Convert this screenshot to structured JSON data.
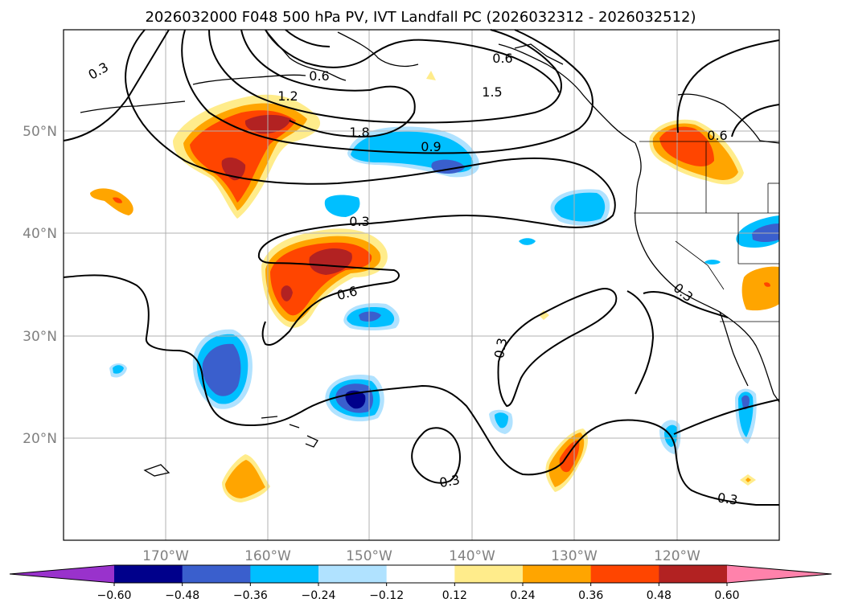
{
  "title": "2026032000 F048 500 hPa PV, IVT Landfall PC (2026032312 - 2026032512)",
  "map": {
    "lon_labels": [
      "170°W",
      "160°W",
      "150°W",
      "140°W",
      "130°W",
      "120°W"
    ],
    "lat_labels": [
      "50°N",
      "40°N",
      "30°N",
      "20°N"
    ],
    "contour_labels": [
      "0.3",
      "0.6",
      "1.2",
      "0.6",
      "1.5",
      "1.8",
      "0.9",
      "0.3",
      "0.6",
      "0.3",
      "0.3",
      "0.3",
      "0.6",
      "0.3"
    ]
  },
  "colorbar": {
    "ticks": [
      "−0.60",
      "−0.48",
      "−0.36",
      "−0.24",
      "−0.12",
      "0.12",
      "0.24",
      "0.36",
      "0.48",
      "0.60"
    ],
    "colors": [
      "#9932cc",
      "#00008b",
      "#3a5fcd",
      "#00bfff",
      "#b0e2ff",
      "#ffffff",
      "#ffec8b",
      "#ffa500",
      "#ff4500",
      "#b22222",
      "#ff82ab"
    ]
  },
  "colors": {
    "land_outline": "#000000",
    "grid": "#b0b0b0",
    "contour": "#000000"
  }
}
